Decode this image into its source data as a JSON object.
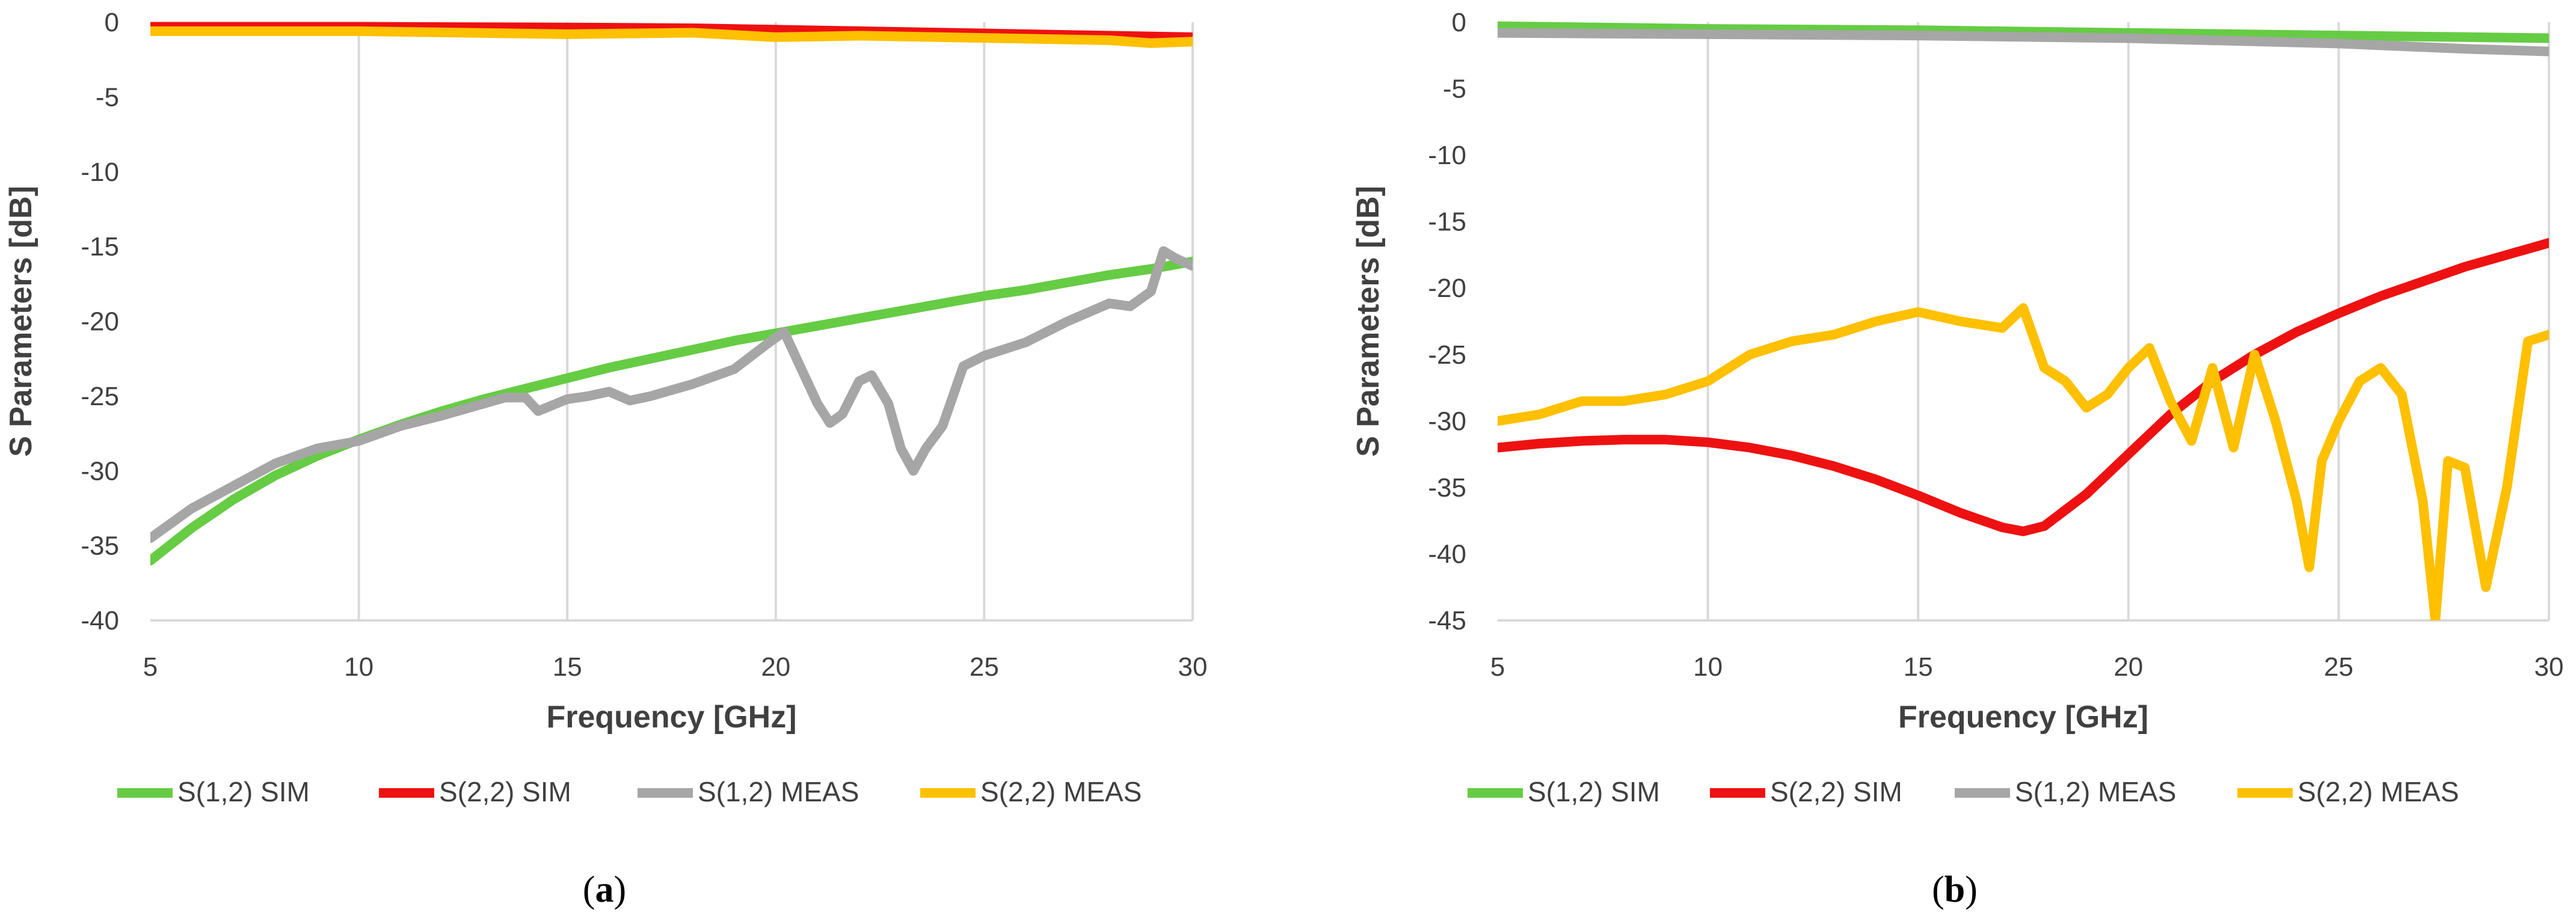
{
  "chart_data": [
    {
      "type": "line",
      "panel_label": "(a)",
      "panel_letter": "a",
      "xlabel": "Frequency [GHz]",
      "ylabel": "S Parameters [dB]",
      "xlim": [
        5,
        30
      ],
      "ylim": [
        -40,
        0
      ],
      "xticks": [
        5,
        10,
        15,
        20,
        25,
        30
      ],
      "yticks": [
        0,
        -5,
        -10,
        -15,
        -20,
        -25,
        -30,
        -35,
        -40
      ],
      "grid": "vertical",
      "legend_position": "bottom",
      "series": [
        {
          "name": "S(1,2) SIM",
          "color": "#66CC44",
          "x": [
            5,
            6,
            7,
            8,
            9,
            10,
            11,
            12,
            13,
            14,
            15,
            16,
            17,
            18,
            19,
            20,
            21,
            22,
            23,
            24,
            25,
            26,
            27,
            28,
            29,
            30
          ],
          "y": [
            -36,
            -33.8,
            -31.9,
            -30.3,
            -29.0,
            -27.9,
            -26.9,
            -26.0,
            -25.2,
            -24.5,
            -23.8,
            -23.1,
            -22.5,
            -21.9,
            -21.3,
            -20.8,
            -20.3,
            -19.8,
            -19.3,
            -18.8,
            -18.3,
            -17.9,
            -17.4,
            -16.9,
            -16.5,
            -16.0
          ]
        },
        {
          "name": "S(2,2) SIM",
          "color": "#EE1111",
          "x": [
            5,
            10,
            15,
            18,
            20,
            22,
            24,
            26,
            28,
            30
          ],
          "y": [
            -0.3,
            -0.3,
            -0.35,
            -0.4,
            -0.5,
            -0.6,
            -0.7,
            -0.8,
            -0.9,
            -1.0
          ]
        },
        {
          "name": "S(1,2) MEAS",
          "color": "#A6A6A6",
          "x": [
            5,
            6,
            7,
            8,
            9,
            10,
            11,
            12,
            13,
            13.5,
            14,
            14.3,
            15,
            15.5,
            16,
            16.5,
            17,
            18,
            19,
            19.8,
            20.2,
            20.5,
            21,
            21.3,
            21.6,
            22,
            22.3,
            22.7,
            23.0,
            23.3,
            23.6,
            24.0,
            24.5,
            25,
            26,
            27,
            28,
            28.5,
            29,
            29.3,
            29.6,
            30
          ],
          "y": [
            -34.5,
            -32.5,
            -31,
            -29.5,
            -28.5,
            -28,
            -27,
            -26.3,
            -25.5,
            -25.1,
            -25.1,
            -26.0,
            -25.2,
            -25.0,
            -24.7,
            -25.3,
            -25.0,
            -24.2,
            -23.2,
            -21.5,
            -20.7,
            -22.5,
            -25.5,
            -26.8,
            -26.2,
            -24.0,
            -23.6,
            -25.5,
            -28.5,
            -30.0,
            -28.5,
            -27.0,
            -23.0,
            -22.3,
            -21.4,
            -20.0,
            -18.8,
            -19.0,
            -18.0,
            -15.3,
            -15.8,
            -16.3
          ]
        },
        {
          "name": "S(2,2) MEAS",
          "color": "#FFC000",
          "x": [
            5,
            10,
            15,
            18,
            20,
            22,
            24,
            26,
            28,
            29,
            30
          ],
          "y": [
            -0.6,
            -0.6,
            -0.8,
            -0.7,
            -1.0,
            -0.9,
            -1.0,
            -1.1,
            -1.2,
            -1.4,
            -1.3
          ]
        }
      ]
    },
    {
      "type": "line",
      "panel_label": "(b)",
      "panel_letter": "b",
      "xlabel": "Frequency [GHz]",
      "ylabel": "S Parameters [dB]",
      "xlim": [
        5,
        30
      ],
      "ylim": [
        -45,
        0
      ],
      "xticks": [
        5,
        10,
        15,
        20,
        25,
        30
      ],
      "yticks": [
        0,
        -5,
        -10,
        -15,
        -20,
        -25,
        -30,
        -35,
        -40,
        -45
      ],
      "grid": "vertical",
      "legend_position": "bottom",
      "series": [
        {
          "name": "S(1,2) SIM",
          "color": "#66CC44",
          "x": [
            5,
            10,
            15,
            20,
            25,
            30
          ],
          "y": [
            -0.3,
            -0.5,
            -0.6,
            -0.8,
            -1.0,
            -1.2
          ]
        },
        {
          "name": "S(2,2) SIM",
          "color": "#EE1111",
          "x": [
            5,
            6,
            7,
            8,
            9,
            10,
            11,
            12,
            13,
            14,
            15,
            16,
            17,
            17.5,
            18,
            19,
            20,
            21,
            22,
            23,
            24,
            25,
            26,
            27,
            28,
            29,
            30
          ],
          "y": [
            -32.0,
            -31.7,
            -31.5,
            -31.4,
            -31.4,
            -31.6,
            -32.0,
            -32.6,
            -33.4,
            -34.4,
            -35.6,
            -36.9,
            -38.0,
            -38.3,
            -37.9,
            -35.5,
            -32.5,
            -29.5,
            -27.0,
            -25.0,
            -23.3,
            -21.9,
            -20.6,
            -19.5,
            -18.4,
            -17.5,
            -16.6
          ]
        },
        {
          "name": "S(1,2) MEAS",
          "color": "#A6A6A6",
          "x": [
            5,
            10,
            15,
            20,
            25,
            28,
            30
          ],
          "y": [
            -0.8,
            -0.9,
            -1.0,
            -1.2,
            -1.6,
            -2.0,
            -2.2
          ]
        },
        {
          "name": "S(2,2) MEAS",
          "color": "#FFC000",
          "x": [
            5,
            6,
            7,
            8,
            9,
            10,
            11,
            12,
            13,
            14,
            15,
            16,
            17,
            17.5,
            18,
            18.5,
            19,
            19.5,
            20,
            20.5,
            21,
            21.5,
            22,
            22.5,
            23,
            23.5,
            24,
            24.3,
            24.6,
            25,
            25.5,
            26,
            26.5,
            27,
            27.3,
            27.6,
            28,
            28.5,
            29,
            29.5,
            30
          ],
          "y": [
            -30.0,
            -29.5,
            -28.5,
            -28.5,
            -28.0,
            -27.0,
            -25.0,
            -24.0,
            -23.5,
            -22.5,
            -21.8,
            -22.5,
            -23.0,
            -21.5,
            -26.0,
            -27.0,
            -29.0,
            -28.0,
            -26.0,
            -24.5,
            -28.5,
            -31.5,
            -26.0,
            -32.0,
            -25.0,
            -30.0,
            -36.0,
            -41.0,
            -33.0,
            -30.0,
            -27.0,
            -26.0,
            -28.0,
            -36.0,
            -45.0,
            -33.0,
            -33.5,
            -42.5,
            -35.0,
            -24.0,
            -23.5
          ]
        }
      ]
    }
  ]
}
